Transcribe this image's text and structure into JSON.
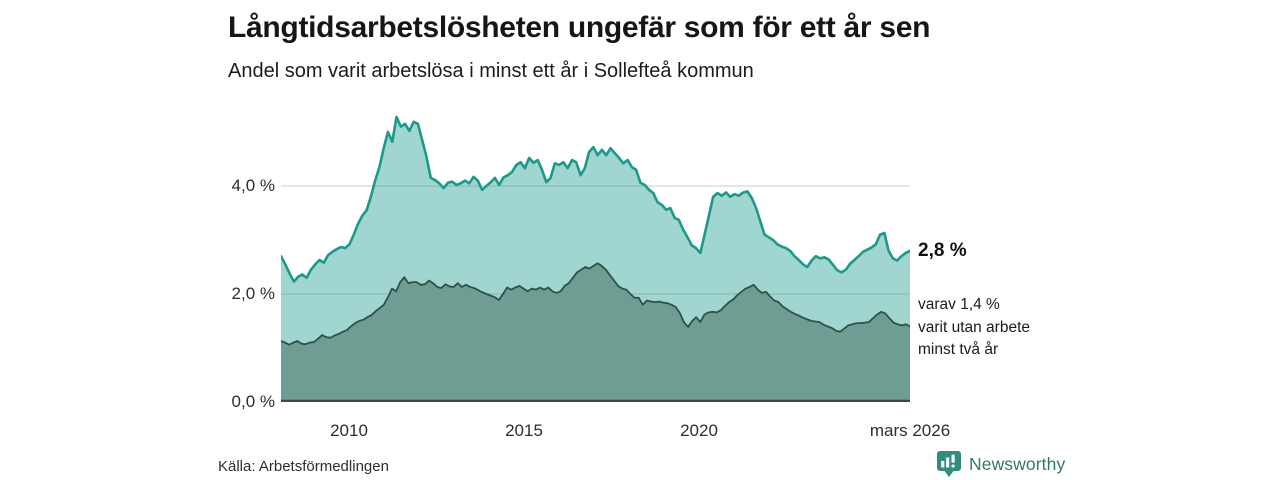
{
  "chart_data": {
    "type": "area",
    "title": "Långtidsarbetslösheten ungefär som för ett år sen",
    "subtitle": "Andel som varit arbetslösa i minst ett år i Sollefteå kommun",
    "source": "Källa: Arbetsförmedlingen",
    "unit": "%",
    "x_start": "2008",
    "x_end": "mars 2026",
    "x_ticks": [
      {
        "label": "2010",
        "f": 0.108
      },
      {
        "label": "2015",
        "f": 0.386
      },
      {
        "label": "2020",
        "f": 0.664
      },
      {
        "label": "mars 2026",
        "f": 1.0
      }
    ],
    "y_ticks": [
      {
        "value": 0,
        "label": "0,0 %"
      },
      {
        "value": 2,
        "label": "2,0 %"
      },
      {
        "value": 4,
        "label": "4,0 %"
      }
    ],
    "ylim": [
      0,
      5.44
    ],
    "grid": true,
    "legend_position": "end-labels-right",
    "series": [
      {
        "name": "Andel arbetslösa minst ett år",
        "end_value": 2.8,
        "end_label": "2,8 %",
        "line_color": "#1a9a8a",
        "fill_color": "rgba(26,154,138,0.41)",
        "values": [
          2.7,
          2.55,
          2.38,
          2.23,
          2.32,
          2.36,
          2.3,
          2.45,
          2.55,
          2.63,
          2.58,
          2.72,
          2.78,
          2.83,
          2.87,
          2.85,
          2.92,
          3.1,
          3.3,
          3.45,
          3.55,
          3.8,
          4.1,
          4.35,
          4.7,
          5.0,
          4.82,
          5.28,
          5.1,
          5.15,
          5.02,
          5.19,
          5.15,
          4.85,
          4.54,
          4.15,
          4.11,
          4.05,
          3.96,
          4.06,
          4.08,
          4.02,
          4.05,
          4.1,
          4.05,
          4.17,
          4.1,
          3.93,
          4.0,
          4.07,
          4.15,
          4.02,
          4.16,
          4.2,
          4.26,
          4.39,
          4.44,
          4.33,
          4.52,
          4.43,
          4.48,
          4.3,
          4.07,
          4.15,
          4.42,
          4.39,
          4.44,
          4.33,
          4.48,
          4.44,
          4.2,
          4.33,
          4.63,
          4.72,
          4.57,
          4.67,
          4.57,
          4.7,
          4.61,
          4.52,
          4.42,
          4.48,
          4.35,
          4.3,
          4.06,
          4.02,
          3.93,
          3.87,
          3.7,
          3.65,
          3.56,
          3.59,
          3.41,
          3.37,
          3.19,
          3.05,
          2.9,
          2.85,
          2.76,
          3.1,
          3.45,
          3.8,
          3.87,
          3.82,
          3.88,
          3.8,
          3.85,
          3.82,
          3.88,
          3.9,
          3.78,
          3.6,
          3.35,
          3.1,
          3.05,
          3.0,
          2.92,
          2.88,
          2.85,
          2.8,
          2.7,
          2.63,
          2.55,
          2.5,
          2.62,
          2.7,
          2.66,
          2.68,
          2.64,
          2.54,
          2.44,
          2.4,
          2.45,
          2.56,
          2.63,
          2.7,
          2.78,
          2.82,
          2.86,
          2.92,
          3.1,
          3.13,
          2.8,
          2.66,
          2.62,
          2.7,
          2.76,
          2.8
        ]
      },
      {
        "name": "varav utan arbete minst två år",
        "end_value": 1.4,
        "end_label_lines": [
          "varav 1,4 %",
          "varit utan arbete",
          "minst två år"
        ],
        "line_color": "#2d5249",
        "fill_color": "#6f9c93",
        "values": [
          1.13,
          1.1,
          1.06,
          1.1,
          1.13,
          1.08,
          1.07,
          1.1,
          1.11,
          1.17,
          1.24,
          1.2,
          1.19,
          1.23,
          1.26,
          1.3,
          1.33,
          1.4,
          1.46,
          1.5,
          1.52,
          1.57,
          1.61,
          1.68,
          1.74,
          1.8,
          1.94,
          2.1,
          2.05,
          2.22,
          2.31,
          2.2,
          2.22,
          2.22,
          2.17,
          2.18,
          2.25,
          2.2,
          2.13,
          2.11,
          2.18,
          2.14,
          2.13,
          2.2,
          2.13,
          2.17,
          2.13,
          2.11,
          2.07,
          2.03,
          2.0,
          1.97,
          1.94,
          1.89,
          2.0,
          2.12,
          2.08,
          2.12,
          2.15,
          2.1,
          2.05,
          2.1,
          2.08,
          2.12,
          2.08,
          2.12,
          2.05,
          2.02,
          2.05,
          2.15,
          2.2,
          2.3,
          2.4,
          2.45,
          2.5,
          2.47,
          2.52,
          2.57,
          2.52,
          2.45,
          2.35,
          2.25,
          2.15,
          2.1,
          2.08,
          2.0,
          1.93,
          1.93,
          1.8,
          1.88,
          1.86,
          1.85,
          1.86,
          1.84,
          1.83,
          1.8,
          1.76,
          1.65,
          1.48,
          1.39,
          1.5,
          1.57,
          1.48,
          1.62,
          1.66,
          1.67,
          1.66,
          1.7,
          1.78,
          1.85,
          1.9,
          1.98,
          2.04,
          2.1,
          2.13,
          2.17,
          2.08,
          2.02,
          2.04,
          1.95,
          1.88,
          1.85,
          1.77,
          1.72,
          1.67,
          1.63,
          1.6,
          1.56,
          1.53,
          1.5,
          1.49,
          1.48,
          1.43,
          1.4,
          1.37,
          1.32,
          1.3,
          1.36,
          1.42,
          1.44,
          1.46,
          1.46,
          1.47,
          1.48,
          1.55,
          1.62,
          1.67,
          1.64,
          1.55,
          1.47,
          1.44,
          1.42,
          1.44,
          1.4
        ]
      }
    ]
  },
  "colors": {
    "grid": "#d6d6d6",
    "axis_line": "#3d4743",
    "title_text": "#161616",
    "tick_text": "#2e2e2e",
    "brand_icon": "#2f8e80",
    "brand_text": "#33796d"
  },
  "branding": {
    "name": "Newsworthy"
  }
}
